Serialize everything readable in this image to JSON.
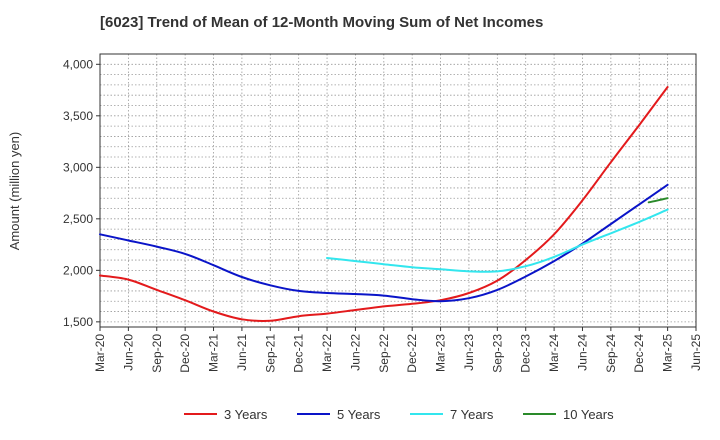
{
  "chart_data": {
    "type": "line",
    "title": "[6023]  Trend of Mean of 12-Month Moving Sum of Net Incomes",
    "ylabel": "Amount (million yen)",
    "xlabel": "",
    "ylim": [
      1450,
      4100
    ],
    "yticks": [
      1500,
      2000,
      2500,
      3000,
      3500,
      4000
    ],
    "ytick_labels": [
      "1,500",
      "2,000",
      "2,500",
      "3,000",
      "3,500",
      "4,000"
    ],
    "x_start": "Mar-20",
    "x_months": 63,
    "xtick_labels": [
      "Mar-20",
      "Jun-20",
      "Sep-20",
      "Dec-20",
      "Mar-21",
      "Jun-21",
      "Sep-21",
      "Dec-21",
      "Mar-22",
      "Jun-22",
      "Sep-22",
      "Dec-22",
      "Mar-23",
      "Jun-23",
      "Sep-23",
      "Dec-23",
      "Mar-24",
      "Jun-24",
      "Sep-24",
      "Dec-24",
      "Mar-25",
      "Jun-25"
    ],
    "grid": true,
    "legend_position": "bottom",
    "series": [
      {
        "name": "3 Years",
        "color": "#e31a1c",
        "x": [
          "Mar-20",
          "Jun-20",
          "Sep-20",
          "Dec-20",
          "Mar-21",
          "Jun-21",
          "Sep-21",
          "Dec-21",
          "Mar-22",
          "Jun-22",
          "Sep-22",
          "Dec-22",
          "Mar-23",
          "Jun-23",
          "Sep-23",
          "Dec-23",
          "Mar-24",
          "Jun-24",
          "Sep-24",
          "Dec-24",
          "Mar-25"
        ],
        "values": [
          1950,
          1910,
          1810,
          1710,
          1600,
          1525,
          1510,
          1555,
          1580,
          1615,
          1650,
          1675,
          1710,
          1780,
          1900,
          2100,
          2350,
          2680,
          3050,
          3410,
          3780
        ]
      },
      {
        "name": "5 Years",
        "color": "#0a14c8",
        "x": [
          "Mar-20",
          "Jun-20",
          "Sep-20",
          "Dec-20",
          "Mar-21",
          "Jun-21",
          "Sep-21",
          "Dec-21",
          "Mar-22",
          "Jun-22",
          "Sep-22",
          "Dec-22",
          "Mar-23",
          "Jun-23",
          "Sep-23",
          "Dec-23",
          "Mar-24",
          "Jun-24",
          "Sep-24",
          "Dec-24",
          "Mar-25"
        ],
        "values": [
          2350,
          2290,
          2230,
          2160,
          2050,
          1935,
          1855,
          1800,
          1780,
          1770,
          1755,
          1720,
          1700,
          1730,
          1810,
          1940,
          2090,
          2260,
          2450,
          2640,
          2830
        ]
      },
      {
        "name": "7 Years",
        "color": "#33e6ee",
        "x": [
          "Mar-22",
          "Jun-22",
          "Sep-22",
          "Dec-22",
          "Mar-23",
          "Jun-23",
          "Sep-23",
          "Dec-23",
          "Mar-24",
          "Jun-24",
          "Sep-24",
          "Dec-24",
          "Mar-25"
        ],
        "values": [
          2120,
          2090,
          2060,
          2030,
          2010,
          1990,
          1990,
          2040,
          2130,
          2250,
          2360,
          2470,
          2590
        ]
      },
      {
        "name": "10 Years",
        "color": "#2a8a2a",
        "x": [
          "Jan-25",
          "Feb-25",
          "Mar-25"
        ],
        "values": [
          2660,
          2680,
          2700
        ]
      }
    ]
  }
}
